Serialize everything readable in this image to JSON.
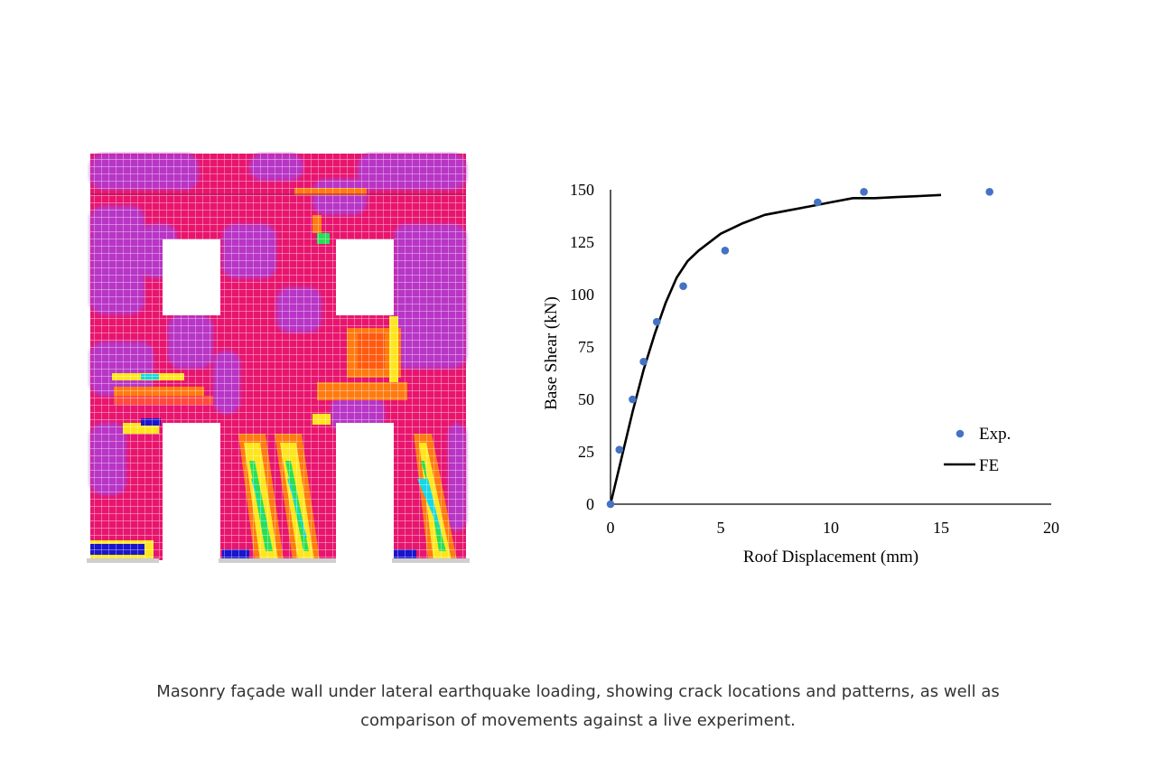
{
  "figure": {
    "colors": {
      "base": "#e8156e",
      "purple": "#b03ad6",
      "orange": "#ff7a10",
      "yellow": "#ffe51c",
      "green": "#27df56",
      "cyan": "#12d8e8",
      "blue": "#1a14cc",
      "grid": "#ffffff"
    }
  },
  "chart_data": {
    "type": "scatter",
    "xlabel": "Roof Displacement  (mm)",
    "ylabel": "Base Shear (kN)",
    "xlim": [
      0,
      20
    ],
    "ylim": [
      0,
      150
    ],
    "xticks": [
      "0",
      "5",
      "10",
      "15",
      "20"
    ],
    "yticks": [
      "0",
      "25",
      "50",
      "75",
      "100",
      "125",
      "150"
    ],
    "legend_position": "bottom-right",
    "series": [
      {
        "name": "Exp.",
        "kind": "scatter",
        "color": "#4472c4",
        "x": [
          0,
          0.4,
          1.0,
          1.5,
          2.1,
          3.3,
          5.2,
          9.4,
          11.5,
          17.2
        ],
        "y": [
          0,
          26,
          50,
          68,
          87,
          104,
          121,
          144,
          149,
          149
        ]
      },
      {
        "name": "FE",
        "kind": "line",
        "color": "#000000",
        "x": [
          0,
          0.5,
          1.0,
          1.5,
          2.0,
          2.5,
          3.0,
          3.5,
          4.0,
          5.0,
          6.0,
          7.0,
          8.0,
          9.0,
          10.0,
          11.0,
          12.0,
          13.0,
          14.0,
          15.0
        ],
        "y": [
          0,
          22,
          44,
          64,
          81,
          96,
          108,
          116,
          121,
          129,
          134,
          138,
          140,
          142,
          144,
          146,
          146,
          146.5,
          147,
          147.5
        ]
      }
    ]
  },
  "caption": {
    "line1": "Masonry façade wall under lateral earthquake loading, showing crack locations and patterns, as well as",
    "line2": "comparison of movements against a live experiment."
  }
}
